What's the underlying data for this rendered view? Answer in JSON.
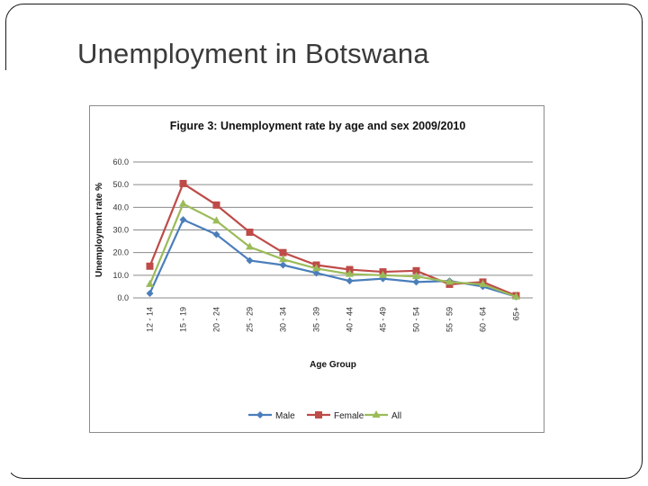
{
  "slide": {
    "title": "Unemployment in Botswana"
  },
  "chart_data": {
    "type": "line",
    "title": "Figure 3: Unemployment rate by age and sex 2009/2010",
    "xlabel": "Age Group",
    "ylabel": "Unemployment rate %",
    "ylim": [
      0,
      60
    ],
    "yticks": [
      "0.0",
      "10.0",
      "20.0",
      "30.0",
      "40.0",
      "50.0",
      "60.0"
    ],
    "categories": [
      "12 - 14",
      "15 - 19",
      "20 - 24",
      "25 - 29",
      "30 - 34",
      "35 - 39",
      "40 - 44",
      "45 - 49",
      "50 - 54",
      "55 - 59",
      "60 - 64",
      "65+"
    ],
    "grid": true,
    "legend_position": "bottom",
    "series": [
      {
        "name": "Male",
        "color": "#4a7ebb",
        "marker": "diamond",
        "values": [
          2.0,
          34.5,
          28.0,
          16.5,
          14.5,
          11.0,
          7.5,
          8.5,
          7.0,
          7.5,
          5.0,
          0.5
        ]
      },
      {
        "name": "Female",
        "color": "#be4b48",
        "marker": "square",
        "values": [
          14.0,
          50.5,
          41.0,
          29.0,
          20.0,
          14.5,
          12.5,
          11.5,
          12.0,
          6.0,
          7.0,
          1.0
        ]
      },
      {
        "name": "All",
        "color": "#9bbb59",
        "marker": "triangle",
        "values": [
          6.0,
          41.5,
          34.0,
          22.5,
          17.0,
          13.0,
          10.5,
          10.0,
          9.5,
          7.0,
          6.0,
          0.5
        ]
      }
    ]
  }
}
